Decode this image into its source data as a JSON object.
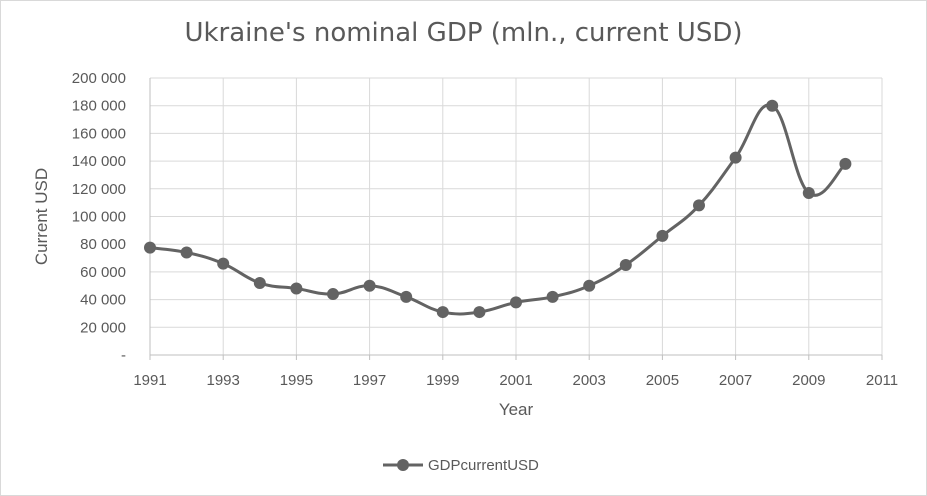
{
  "chart_data": {
    "type": "line",
    "title": "Ukraine's nominal GDP (mln., current USD)",
    "xlabel": "Year",
    "ylabel": "Current  USD",
    "xlim": [
      1991,
      2011
    ],
    "ylim": [
      0,
      200000
    ],
    "x_ticks": [
      1991,
      1993,
      1995,
      1997,
      1999,
      2001,
      2003,
      2005,
      2007,
      2009,
      2011
    ],
    "y_ticks": [
      0,
      20000,
      40000,
      60000,
      80000,
      100000,
      120000,
      140000,
      160000,
      180000,
      200000
    ],
    "y_tick_labels": [
      "-",
      "20 000",
      "40 000",
      "60 000",
      "80 000",
      "100 000",
      "120 000",
      "140 000",
      "160 000",
      "180 000",
      "200 000"
    ],
    "grid": true,
    "legend_position": "bottom",
    "series": [
      {
        "name": "GDPcurrentUSD",
        "color": "#636363",
        "x": [
          1991,
          1992,
          1993,
          1994,
          1995,
          1996,
          1997,
          1998,
          1999,
          2000,
          2001,
          2002,
          2003,
          2004,
          2005,
          2006,
          2007,
          2008,
          2009,
          2010
        ],
        "values": [
          77500,
          74000,
          66000,
          52000,
          48000,
          44000,
          50000,
          42000,
          31000,
          31000,
          38000,
          42000,
          50000,
          65000,
          86000,
          108000,
          142500,
          180000,
          117000,
          138000
        ]
      }
    ]
  }
}
